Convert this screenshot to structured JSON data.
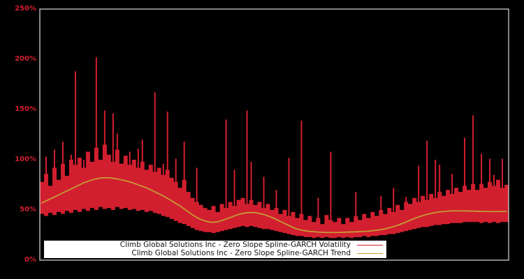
{
  "figure": {
    "background": "#000000",
    "axis_border_color": "#cccccc"
  },
  "y_axis": {
    "color": "#d21f2f",
    "tick_labels": [
      "250%",
      "200%",
      "150%",
      "100%",
      "50%",
      "0%"
    ],
    "tick_values": [
      250,
      200,
      150,
      100,
      50,
      0
    ]
  },
  "legend": {
    "background": "#ffffff",
    "entries": [
      {
        "label": "Climb Global Solutions Inc - Zero Slope Spline-GARCH Volatility",
        "color": "#d21f2f"
      },
      {
        "label": "Climb Global Solutions Inc - Zero Slope Spline-GARCH Trend",
        "color": "#c4a035"
      }
    ]
  },
  "chart_data": {
    "type": "line",
    "title": "",
    "xlabel": "",
    "ylabel": "",
    "y_unit": "%",
    "ylim": [
      0,
      250
    ],
    "grid": false,
    "legend_position": "lower center",
    "x_tick_labels_visible": false,
    "series": [
      {
        "name": "Climb Global Solutions Inc - Zero Slope Spline-GARCH Volatility",
        "color": "#d21f2f",
        "render": "noisy-band-with-spikes",
        "band_high": [
          78,
          86,
          74,
          92,
          80,
          96,
          84,
          100,
          95,
          102,
          92,
          108,
          98,
          112,
          100,
          115,
          105,
          98,
          110,
          96,
          104,
          95,
          100,
          92,
          98,
          90,
          95,
          88,
          92,
          85,
          90,
          82,
          78,
          72,
          80,
          68,
          62,
          58,
          55,
          52,
          50,
          54,
          48,
          56,
          52,
          58,
          54,
          60,
          62,
          56,
          60,
          55,
          58,
          52,
          56,
          50,
          52,
          46,
          50,
          44,
          48,
          42,
          46,
          40,
          44,
          38,
          42,
          36,
          45,
          40,
          38,
          42,
          36,
          42,
          38,
          44,
          40,
          46,
          42,
          48,
          44,
          50,
          46,
          52,
          48,
          55,
          50,
          58,
          56,
          62,
          58,
          64,
          60,
          66,
          62,
          68,
          64,
          70,
          66,
          72,
          68,
          74,
          70,
          76,
          70,
          76,
          72,
          78,
          74,
          80,
          72,
          75
        ],
        "band_low": [
          46,
          44,
          47,
          45,
          48,
          46,
          49,
          47,
          50,
          48,
          51,
          49,
          52,
          50,
          53,
          51,
          52,
          50,
          53,
          51,
          52,
          50,
          51,
          49,
          50,
          48,
          49,
          47,
          46,
          44,
          43,
          41,
          39,
          37,
          36,
          34,
          32,
          30,
          29,
          28,
          28,
          27,
          28,
          29,
          30,
          31,
          32,
          33,
          34,
          33,
          34,
          33,
          32,
          31,
          31,
          30,
          29,
          28,
          27,
          26,
          25,
          24,
          24,
          23,
          23,
          22,
          23,
          22,
          23,
          22,
          22,
          23,
          22,
          23,
          22,
          23,
          23,
          24,
          23,
          24,
          24,
          25,
          25,
          26,
          26,
          27,
          28,
          29,
          30,
          31,
          32,
          33,
          33,
          34,
          35,
          35,
          36,
          36,
          37,
          37,
          37,
          38,
          38,
          38,
          38,
          37,
          38,
          37,
          38,
          37,
          38,
          38
        ],
        "spikes": [
          [
            1,
            103
          ],
          [
            3,
            110
          ],
          [
            5,
            118
          ],
          [
            7,
            105
          ],
          [
            8,
            188
          ],
          [
            10,
            100
          ],
          [
            13,
            202
          ],
          [
            15,
            149
          ],
          [
            17,
            146
          ],
          [
            18,
            126
          ],
          [
            21,
            108
          ],
          [
            23,
            111
          ],
          [
            24,
            120
          ],
          [
            27,
            167
          ],
          [
            29,
            96
          ],
          [
            30,
            148
          ],
          [
            32,
            101
          ],
          [
            34,
            118
          ],
          [
            37,
            92
          ],
          [
            44,
            140
          ],
          [
            46,
            90
          ],
          [
            49,
            149
          ],
          [
            50,
            98
          ],
          [
            53,
            83
          ],
          [
            56,
            70
          ],
          [
            59,
            102
          ],
          [
            62,
            139
          ],
          [
            66,
            62
          ],
          [
            69,
            108
          ],
          [
            75,
            68
          ],
          [
            81,
            64
          ],
          [
            84,
            72
          ],
          [
            87,
            63
          ],
          [
            90,
            94
          ],
          [
            92,
            119
          ],
          [
            94,
            100
          ],
          [
            95,
            95
          ],
          [
            98,
            86
          ],
          [
            101,
            122
          ],
          [
            103,
            144
          ],
          [
            105,
            106
          ],
          [
            107,
            101
          ],
          [
            108,
            85
          ],
          [
            110,
            101
          ]
        ]
      },
      {
        "name": "Climb Global Solutions Inc - Zero Slope Spline-GARCH Trend",
        "color": "#c4a035",
        "render": "smooth-line",
        "values": [
          57,
          59,
          61,
          63,
          65,
          67,
          69,
          71,
          73,
          75,
          77,
          78.5,
          80,
          81,
          81.8,
          82,
          82,
          81.5,
          80.8,
          80,
          79,
          78,
          76.5,
          75,
          73.5,
          72,
          70,
          68,
          66,
          64,
          61.5,
          59,
          56.5,
          54,
          51,
          48,
          45,
          42.5,
          40.5,
          39,
          38,
          37.8,
          38.2,
          39.5,
          41,
          42.5,
          44,
          45.5,
          46.5,
          47.3,
          47.5,
          47.3,
          46.5,
          45.5,
          44,
          42.5,
          40.5,
          38.5,
          36.5,
          34.5,
          32.5,
          31,
          30,
          29.2,
          28.7,
          28.3,
          28,
          27.8,
          27.7,
          27.6,
          27.6,
          27.7,
          27.8,
          28,
          28.1,
          28.2,
          28.4,
          28.6,
          28.9,
          29.3,
          29.8,
          30.4,
          31.2,
          32.2,
          33.4,
          34.8,
          36.3,
          38,
          39.8,
          41.5,
          43,
          44.4,
          45.6,
          46.6,
          47.4,
          48,
          48.5,
          48.8,
          49,
          49.1,
          49.1,
          49,
          48.9,
          48.8,
          48.7,
          48.6,
          48.5,
          48.4,
          48.4,
          48.4,
          48.5,
          48.5
        ]
      }
    ]
  }
}
